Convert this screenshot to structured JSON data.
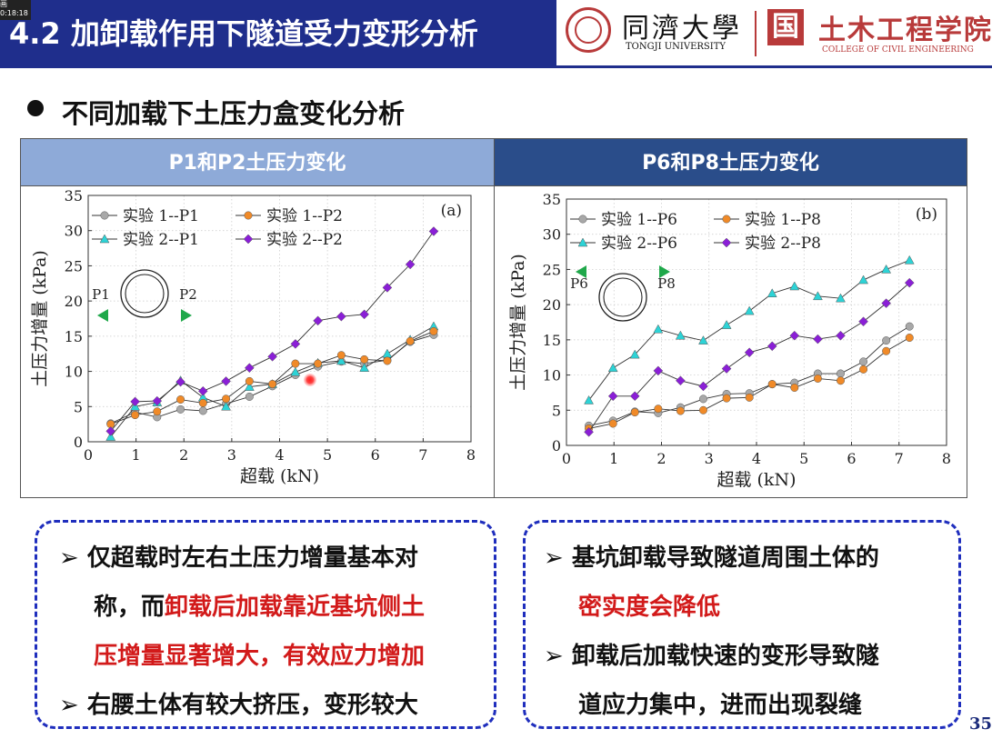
{
  "header": {
    "title": "4.2 加卸载作用下隧道受力变形分析",
    "badge": "画\n0:18:18",
    "tongji_cn": "同濟大學",
    "tongji_en": "TONGJI UNIVERSITY",
    "college_icon": "国",
    "college_cn": "土木工程学院",
    "college_en": "COLLEGE OF CIVIL ENGINEERING"
  },
  "section_title": "不同加载下土压力盒变化分析",
  "table": {
    "left_header": "P1和P2土压力变化",
    "right_header": "P6和P8土压力变化"
  },
  "chart_data": [
    {
      "type": "line",
      "panel_label": "(a)",
      "xlabel": "超载 (kN)",
      "ylabel": "土压力增量 (kPa)",
      "xlim": [
        0,
        8
      ],
      "ylim": [
        0,
        35
      ],
      "xticks": [
        0,
        1,
        2,
        3,
        4,
        5,
        6,
        7,
        8
      ],
      "yticks": [
        0,
        5,
        10,
        15,
        20,
        25,
        30,
        35
      ],
      "x": [
        0.47,
        0.98,
        1.44,
        1.93,
        2.4,
        2.88,
        3.37,
        3.85,
        4.33,
        4.8,
        5.29,
        5.77,
        6.25,
        6.73,
        7.22
      ],
      "series": [
        {
          "name": "实验 1--P1",
          "color": "#a8a8a8",
          "marker": "circle",
          "values": [
            2.6,
            4.2,
            3.5,
            4.6,
            4.4,
            5.4,
            6.4,
            7.9,
            9.5,
            10.7,
            11.4,
            11.1,
            11.6,
            14.2,
            15.2
          ]
        },
        {
          "name": "实验 2--P1",
          "color": "#2dd3d6",
          "marker": "triangle",
          "values": [
            0.7,
            5.0,
            5.6,
            8.7,
            6.3,
            5.0,
            7.8,
            8.2,
            9.9,
            11.2,
            11.5,
            10.5,
            12.5,
            14.5,
            16.4
          ]
        },
        {
          "name": "实验 1--P2",
          "color": "#f08a28",
          "marker": "circle",
          "values": [
            2.5,
            3.8,
            4.3,
            6.0,
            5.5,
            6.1,
            8.6,
            8.2,
            11.1,
            11.1,
            12.3,
            11.7,
            11.5,
            14.3,
            15.7
          ]
        },
        {
          "name": "实验 2--P2",
          "color": "#8a1fd6",
          "marker": "diamond",
          "values": [
            1.5,
            5.7,
            5.8,
            8.5,
            7.2,
            8.6,
            10.5,
            12.1,
            13.9,
            17.2,
            17.8,
            18.1,
            21.9,
            25.2,
            29.9
          ]
        }
      ],
      "legend_position": "top",
      "grid": true,
      "inset": {
        "left_label": "P1",
        "right_label": "P2"
      }
    },
    {
      "type": "line",
      "panel_label": "(b)",
      "xlabel": "超载 (kN)",
      "ylabel": "土压力增量 (kPa)",
      "xlim": [
        0,
        8
      ],
      "ylim": [
        0,
        35
      ],
      "xticks": [
        0,
        1,
        2,
        3,
        4,
        5,
        6,
        7,
        8
      ],
      "yticks": [
        0,
        5,
        10,
        15,
        20,
        25,
        30,
        35
      ],
      "x": [
        0.47,
        0.98,
        1.44,
        1.93,
        2.4,
        2.88,
        3.37,
        3.85,
        4.33,
        4.8,
        5.29,
        5.77,
        6.25,
        6.73,
        7.22
      ],
      "series": [
        {
          "name": "实验 1--P6",
          "color": "#a8a8a8",
          "marker": "circle",
          "values": [
            2.8,
            3.5,
            4.8,
            4.6,
            5.4,
            6.6,
            7.3,
            7.4,
            8.7,
            8.9,
            10.2,
            10.2,
            11.9,
            14.9,
            16.9
          ]
        },
        {
          "name": "实验 2--P6",
          "color": "#2dd3d6",
          "marker": "triangle",
          "values": [
            6.4,
            11.0,
            12.9,
            16.5,
            15.6,
            14.9,
            17.1,
            19.1,
            21.6,
            22.6,
            21.2,
            20.9,
            23.5,
            25.0,
            26.3
          ]
        },
        {
          "name": "实验 1--P8",
          "color": "#f08a28",
          "marker": "circle",
          "values": [
            2.4,
            3.1,
            4.7,
            5.2,
            4.9,
            5.0,
            6.7,
            6.8,
            8.7,
            8.2,
            9.5,
            9.2,
            10.8,
            13.4,
            15.3
          ]
        },
        {
          "name": "实验 2--P8",
          "color": "#8a1fd6",
          "marker": "diamond",
          "values": [
            1.9,
            7.0,
            7.0,
            10.6,
            9.2,
            8.4,
            10.9,
            13.2,
            14.1,
            15.6,
            15.1,
            15.6,
            17.6,
            20.2,
            23.1
          ]
        }
      ],
      "legend_position": "top",
      "grid": true,
      "inset": {
        "left_label": "P6",
        "right_label": "P8"
      }
    }
  ],
  "notes": {
    "left": {
      "line1": "仅超载时左右土压力增量基本对",
      "line2_black": "称，而",
      "line2_red": "卸载后加载靠近基坑侧土",
      "line3_red": "压增量显著增大，有效应力增加",
      "line4": "右腰土体有较大挤压，变形较大"
    },
    "right": {
      "line1": "基坑卸载导致隧道周围土体的",
      "line2_red": "密实度会降低",
      "line3": "卸载后加载快速的变形导致隧",
      "line4": "道应力集中，进而出现裂缝"
    },
    "arrow_glyph": "➢"
  },
  "page_number": "35"
}
